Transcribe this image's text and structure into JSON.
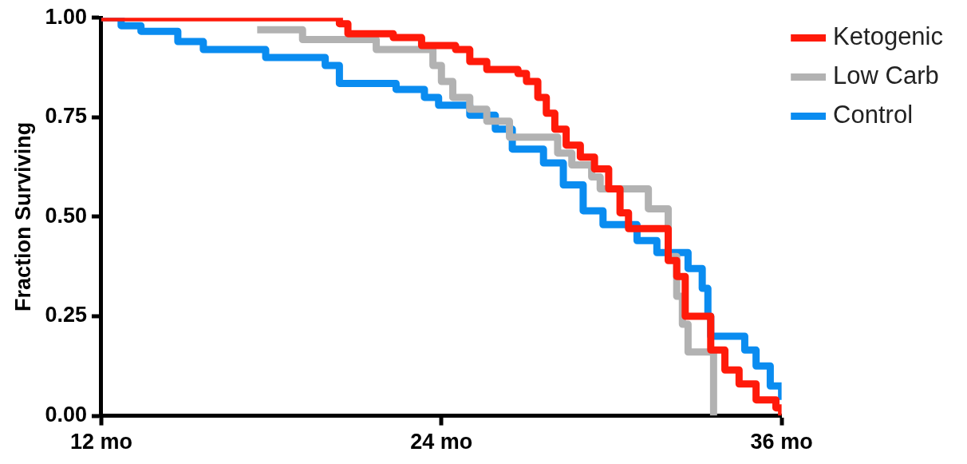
{
  "chart_data": {
    "type": "step",
    "ylabel": "Fraction Surviving",
    "xlim": [
      12,
      36
    ],
    "xticks": [
      {
        "value": 12,
        "label": "12 mo"
      },
      {
        "value": 24,
        "label": "24 mo"
      },
      {
        "value": 36,
        "label": "36 mo"
      }
    ],
    "ylim": [
      0,
      1
    ],
    "yticks": [
      {
        "value": 0,
        "label": "0.00"
      },
      {
        "value": 0.25,
        "label": "0.25"
      },
      {
        "value": 0.5,
        "label": "0.50"
      },
      {
        "value": 0.75,
        "label": "0.75"
      },
      {
        "value": 1,
        "label": "1.00"
      }
    ],
    "grid": false,
    "legend": "top right",
    "marker": "none",
    "line_style": "solid",
    "series": [
      {
        "name": "Ketogenic",
        "color": "#ff1a0a",
        "x": [
          12,
          20.1,
          20.4,
          20.7,
          22.3,
          23.3,
          24.5,
          25.0,
          25.6,
          26.7,
          27.0,
          27.4,
          27.7,
          28.0,
          28.4,
          28.9,
          29.4,
          29.9,
          30.3,
          30.6,
          32.0,
          32.3,
          32.6,
          33.5,
          34.0,
          34.5,
          35.1,
          35.8,
          36
        ],
        "values": [
          1.0,
          1.0,
          0.985,
          0.96,
          0.95,
          0.93,
          0.92,
          0.89,
          0.87,
          0.86,
          0.84,
          0.8,
          0.76,
          0.72,
          0.68,
          0.65,
          0.62,
          0.57,
          0.51,
          0.47,
          0.39,
          0.35,
          0.25,
          0.165,
          0.115,
          0.08,
          0.04,
          0.02,
          0.0
        ]
      },
      {
        "name": "Low Carb",
        "color": "#b2b2b2",
        "x": [
          17.5,
          19.1,
          21.7,
          23.7,
          24.0,
          24.4,
          25.0,
          25.6,
          26.4,
          28.1,
          28.6,
          29.3,
          29.6,
          31.3,
          32.0,
          32.3,
          32.5,
          32.7,
          33.6
        ],
        "values": [
          0.97,
          0.945,
          0.92,
          0.88,
          0.84,
          0.8,
          0.77,
          0.74,
          0.7,
          0.66,
          0.63,
          0.6,
          0.57,
          0.52,
          0.4,
          0.3,
          0.23,
          0.16,
          0.0
        ]
      },
      {
        "name": "Control",
        "color": "#0a8cf0",
        "x": [
          12,
          12.7,
          13.4,
          14.7,
          15.6,
          17.8,
          19.9,
          20.4,
          22.4,
          23.4,
          23.9,
          25.0,
          25.9,
          26.5,
          27.6,
          28.3,
          29.0,
          29.7,
          30.9,
          31.6,
          32.7,
          33.2,
          33.4,
          33.5,
          34.7,
          35.1,
          35.6,
          36.0
        ],
        "values": [
          1.0,
          0.98,
          0.966,
          0.94,
          0.92,
          0.9,
          0.88,
          0.835,
          0.82,
          0.8,
          0.78,
          0.755,
          0.72,
          0.67,
          0.635,
          0.58,
          0.515,
          0.48,
          0.44,
          0.41,
          0.37,
          0.32,
          0.25,
          0.2,
          0.165,
          0.125,
          0.075,
          0.04
        ]
      }
    ]
  }
}
